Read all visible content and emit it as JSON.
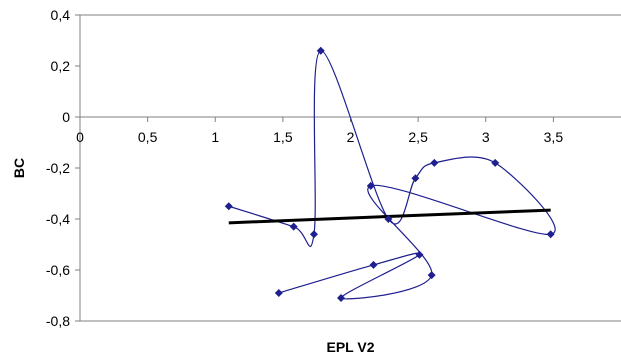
{
  "chart_data": {
    "type": "scatter",
    "xlabel": "EPL V2",
    "ylabel": "BC",
    "xlim": [
      0,
      4
    ],
    "ylim": [
      -0.8,
      0.4
    ],
    "x_ticks": [
      "0",
      "0,5",
      "1",
      "1,5",
      "2",
      "2,5",
      "3",
      "3,5"
    ],
    "y_ticks": [
      "0,4",
      "0,2",
      "0",
      "-0,2",
      "-0,4",
      "-0,6",
      "-0,8"
    ],
    "grid": false,
    "legend": "none",
    "series": [
      {
        "connector": "smoothed",
        "color": "#1f1f8f",
        "points": [
          {
            "x": 1.1,
            "y": -0.35
          },
          {
            "x": 1.58,
            "y": -0.43
          },
          {
            "x": 1.73,
            "y": -0.46
          },
          {
            "x": 1.78,
            "y": 0.26
          },
          {
            "x": 2.28,
            "y": -0.4
          },
          {
            "x": 2.48,
            "y": -0.24
          },
          {
            "x": 2.62,
            "y": -0.18
          },
          {
            "x": 3.07,
            "y": -0.18
          },
          {
            "x": 3.48,
            "y": -0.46
          },
          {
            "x": 2.15,
            "y": -0.27
          },
          {
            "x": 2.6,
            "y": -0.62
          },
          {
            "x": 1.93,
            "y": -0.71
          },
          {
            "x": 2.51,
            "y": -0.54
          },
          {
            "x": 2.17,
            "y": -0.58
          },
          {
            "x": 1.47,
            "y": -0.69
          }
        ]
      }
    ],
    "trendline": {
      "type": "linear",
      "color": "#000000",
      "x": [
        1.1,
        3.48
      ],
      "y": [
        -0.415,
        -0.365
      ]
    }
  }
}
